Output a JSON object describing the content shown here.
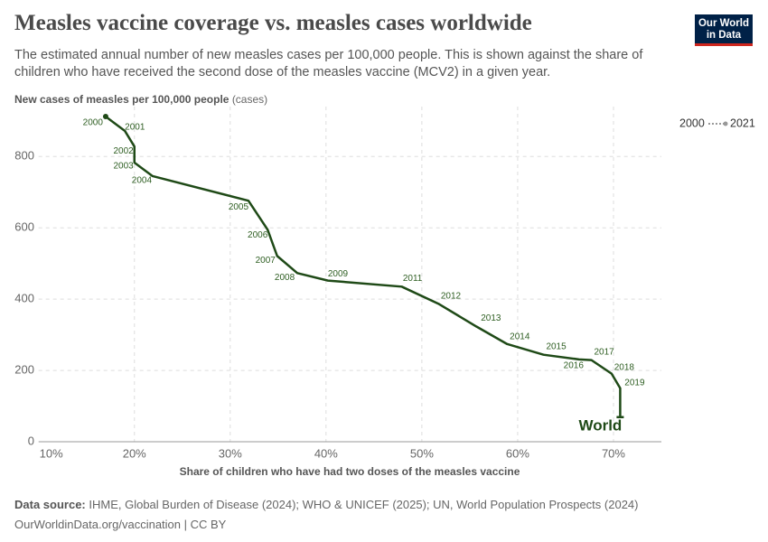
{
  "chart_data": {
    "type": "line",
    "title": "Measles vaccine coverage vs. measles cases worldwide",
    "subtitle": "The estimated annual number of new measles cases per 100,000 people. This is shown against the share of children who have received the second dose of the measles vaccine (MCV2) in a given year.",
    "y_label": "New cases of measles per 100,000 people",
    "y_label_unit": "(cases)",
    "x_label": "Share of children who have had two doses of the measles vaccine",
    "time_range": [
      "2000",
      "2021"
    ],
    "logo": [
      "Our World",
      "in Data"
    ],
    "source_label": "Data source:",
    "source": "IHME, Global Burden of Disease (2024); WHO & UNICEF (2025); UN, World Population Prospects (2024)",
    "url_license": "OurWorldinData.org/vaccination | CC BY",
    "grid": true,
    "xlim": [
      10,
      75
    ],
    "ylim": [
      0,
      940
    ],
    "xticks": [
      {
        "value": 10,
        "label": "10%"
      },
      {
        "value": 20,
        "label": "20%"
      },
      {
        "value": 30,
        "label": "30%"
      },
      {
        "value": 40,
        "label": "40%"
      },
      {
        "value": 50,
        "label": "50%"
      },
      {
        "value": 60,
        "label": "60%"
      },
      {
        "value": 70,
        "label": "70%"
      }
    ],
    "yticks": [
      0,
      200,
      400,
      600,
      800
    ],
    "x": [
      17.0,
      19.0,
      20.0,
      20.0,
      21.9,
      31.9,
      33.9,
      34.9,
      37.0,
      40.2,
      41.1,
      47.9,
      51.8,
      55.7,
      58.9,
      62.7,
      66.4,
      67.7,
      69.8,
      70.7,
      70.7,
      70.7
    ],
    "series": [
      {
        "name": "World",
        "color": "#1f4a17",
        "values": [
          912,
          872,
          828,
          783,
          745,
          676,
          595,
          521,
          473,
          452,
          450,
          435,
          386,
          323,
          274,
          244,
          231,
          229,
          191,
          150,
          109,
          69
        ],
        "point_labels": [
          "2000",
          "2001",
          "2002",
          "2003",
          "2004",
          "2005",
          "2006",
          "2007",
          "2008",
          "2009",
          null,
          "2011",
          "2012",
          "2013",
          "2014",
          "2015",
          "2016",
          "2017",
          "2018",
          "2019",
          null,
          null
        ]
      }
    ]
  }
}
